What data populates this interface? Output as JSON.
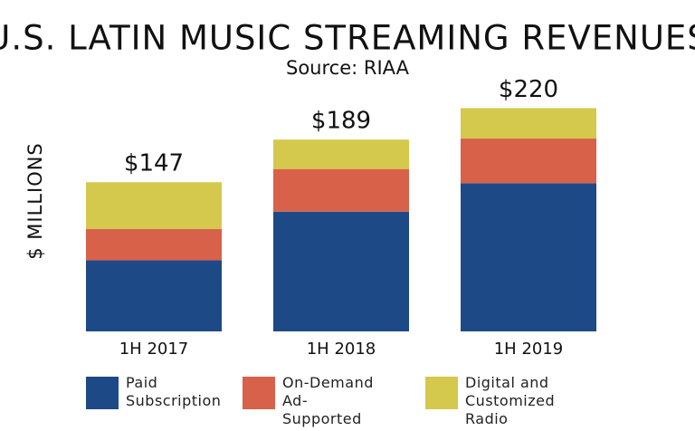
{
  "chart_data": {
    "type": "stacked-bar",
    "title": "U.S. LATIN MUSIC STREAMING REVENUES",
    "subtitle": "Source: RIAA",
    "y_label": "$ MILLIONS",
    "categories": [
      "1H 2017",
      "1H 2018",
      "1H 2019"
    ],
    "series": [
      {
        "name": "Paid Subscription",
        "color": "#1d4a87",
        "values": [
          70,
          118,
          146
        ]
      },
      {
        "name": "On-Demand Ad-Supported",
        "color": "#d8614a",
        "values": [
          31,
          42,
          44
        ]
      },
      {
        "name": "Digital and Customized Radio",
        "color": "#d4c94c",
        "values": [
          46,
          29,
          30
        ]
      }
    ],
    "totals": [
      147,
      189,
      220
    ],
    "total_labels": [
      "$147",
      "$189",
      "$220"
    ],
    "ylim": [
      0,
      240
    ]
  }
}
